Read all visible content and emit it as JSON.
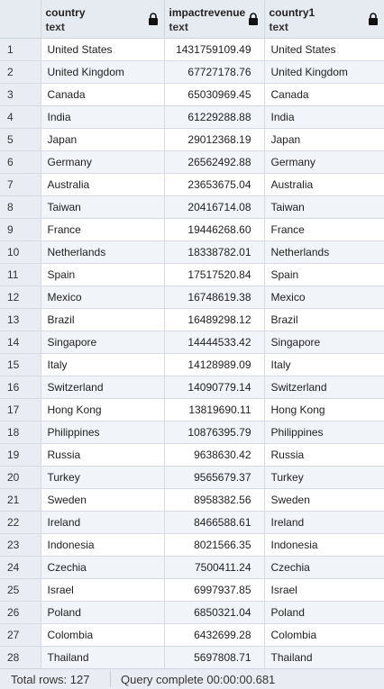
{
  "columns": [
    {
      "name": "country",
      "type": "text"
    },
    {
      "name": "impactrevenue",
      "type": "text"
    },
    {
      "name": "country1",
      "type": "text"
    }
  ],
  "rows": [
    {
      "n": "1",
      "country": "United States",
      "impactrevenue": "1431759109.49",
      "country1": "United States"
    },
    {
      "n": "2",
      "country": "United Kingdom",
      "impactrevenue": "67727178.76",
      "country1": "United Kingdom"
    },
    {
      "n": "3",
      "country": "Canada",
      "impactrevenue": "65030969.45",
      "country1": "Canada"
    },
    {
      "n": "4",
      "country": "India",
      "impactrevenue": "61229288.88",
      "country1": "India"
    },
    {
      "n": "5",
      "country": "Japan",
      "impactrevenue": "29012368.19",
      "country1": "Japan"
    },
    {
      "n": "6",
      "country": "Germany",
      "impactrevenue": "26562492.88",
      "country1": "Germany"
    },
    {
      "n": "7",
      "country": "Australia",
      "impactrevenue": "23653675.04",
      "country1": "Australia"
    },
    {
      "n": "8",
      "country": "Taiwan",
      "impactrevenue": "20416714.08",
      "country1": "Taiwan"
    },
    {
      "n": "9",
      "country": "France",
      "impactrevenue": "19446268.60",
      "country1": "France"
    },
    {
      "n": "10",
      "country": "Netherlands",
      "impactrevenue": "18338782.01",
      "country1": "Netherlands"
    },
    {
      "n": "11",
      "country": "Spain",
      "impactrevenue": "17517520.84",
      "country1": "Spain"
    },
    {
      "n": "12",
      "country": "Mexico",
      "impactrevenue": "16748619.38",
      "country1": "Mexico"
    },
    {
      "n": "13",
      "country": "Brazil",
      "impactrevenue": "16489298.12",
      "country1": "Brazil"
    },
    {
      "n": "14",
      "country": "Singapore",
      "impactrevenue": "14444533.42",
      "country1": "Singapore"
    },
    {
      "n": "15",
      "country": "Italy",
      "impactrevenue": "14128989.09",
      "country1": "Italy"
    },
    {
      "n": "16",
      "country": "Switzerland",
      "impactrevenue": "14090779.14",
      "country1": "Switzerland"
    },
    {
      "n": "17",
      "country": "Hong Kong",
      "impactrevenue": "13819690.11",
      "country1": "Hong Kong"
    },
    {
      "n": "18",
      "country": "Philippines",
      "impactrevenue": "10876395.79",
      "country1": "Philippines"
    },
    {
      "n": "19",
      "country": "Russia",
      "impactrevenue": "9638630.42",
      "country1": "Russia"
    },
    {
      "n": "20",
      "country": "Turkey",
      "impactrevenue": "9565679.37",
      "country1": "Turkey"
    },
    {
      "n": "21",
      "country": "Sweden",
      "impactrevenue": "8958382.56",
      "country1": "Sweden"
    },
    {
      "n": "22",
      "country": "Ireland",
      "impactrevenue": "8466588.61",
      "country1": "Ireland"
    },
    {
      "n": "23",
      "country": "Indonesia",
      "impactrevenue": "8021566.35",
      "country1": "Indonesia"
    },
    {
      "n": "24",
      "country": "Czechia",
      "impactrevenue": "7500411.24",
      "country1": "Czechia"
    },
    {
      "n": "25",
      "country": "Israel",
      "impactrevenue": "6997937.85",
      "country1": "Israel"
    },
    {
      "n": "26",
      "country": "Poland",
      "impactrevenue": "6850321.04",
      "country1": "Poland"
    },
    {
      "n": "27",
      "country": "Colombia",
      "impactrevenue": "6432699.28",
      "country1": "Colombia"
    },
    {
      "n": "28",
      "country": "Thailand",
      "impactrevenue": "5697808.71",
      "country1": "Thailand"
    }
  ],
  "status": {
    "total_rows": "Total rows: 127",
    "query": "Query complete 00:00:00.681"
  },
  "icons": {
    "lock": "lock-icon"
  }
}
